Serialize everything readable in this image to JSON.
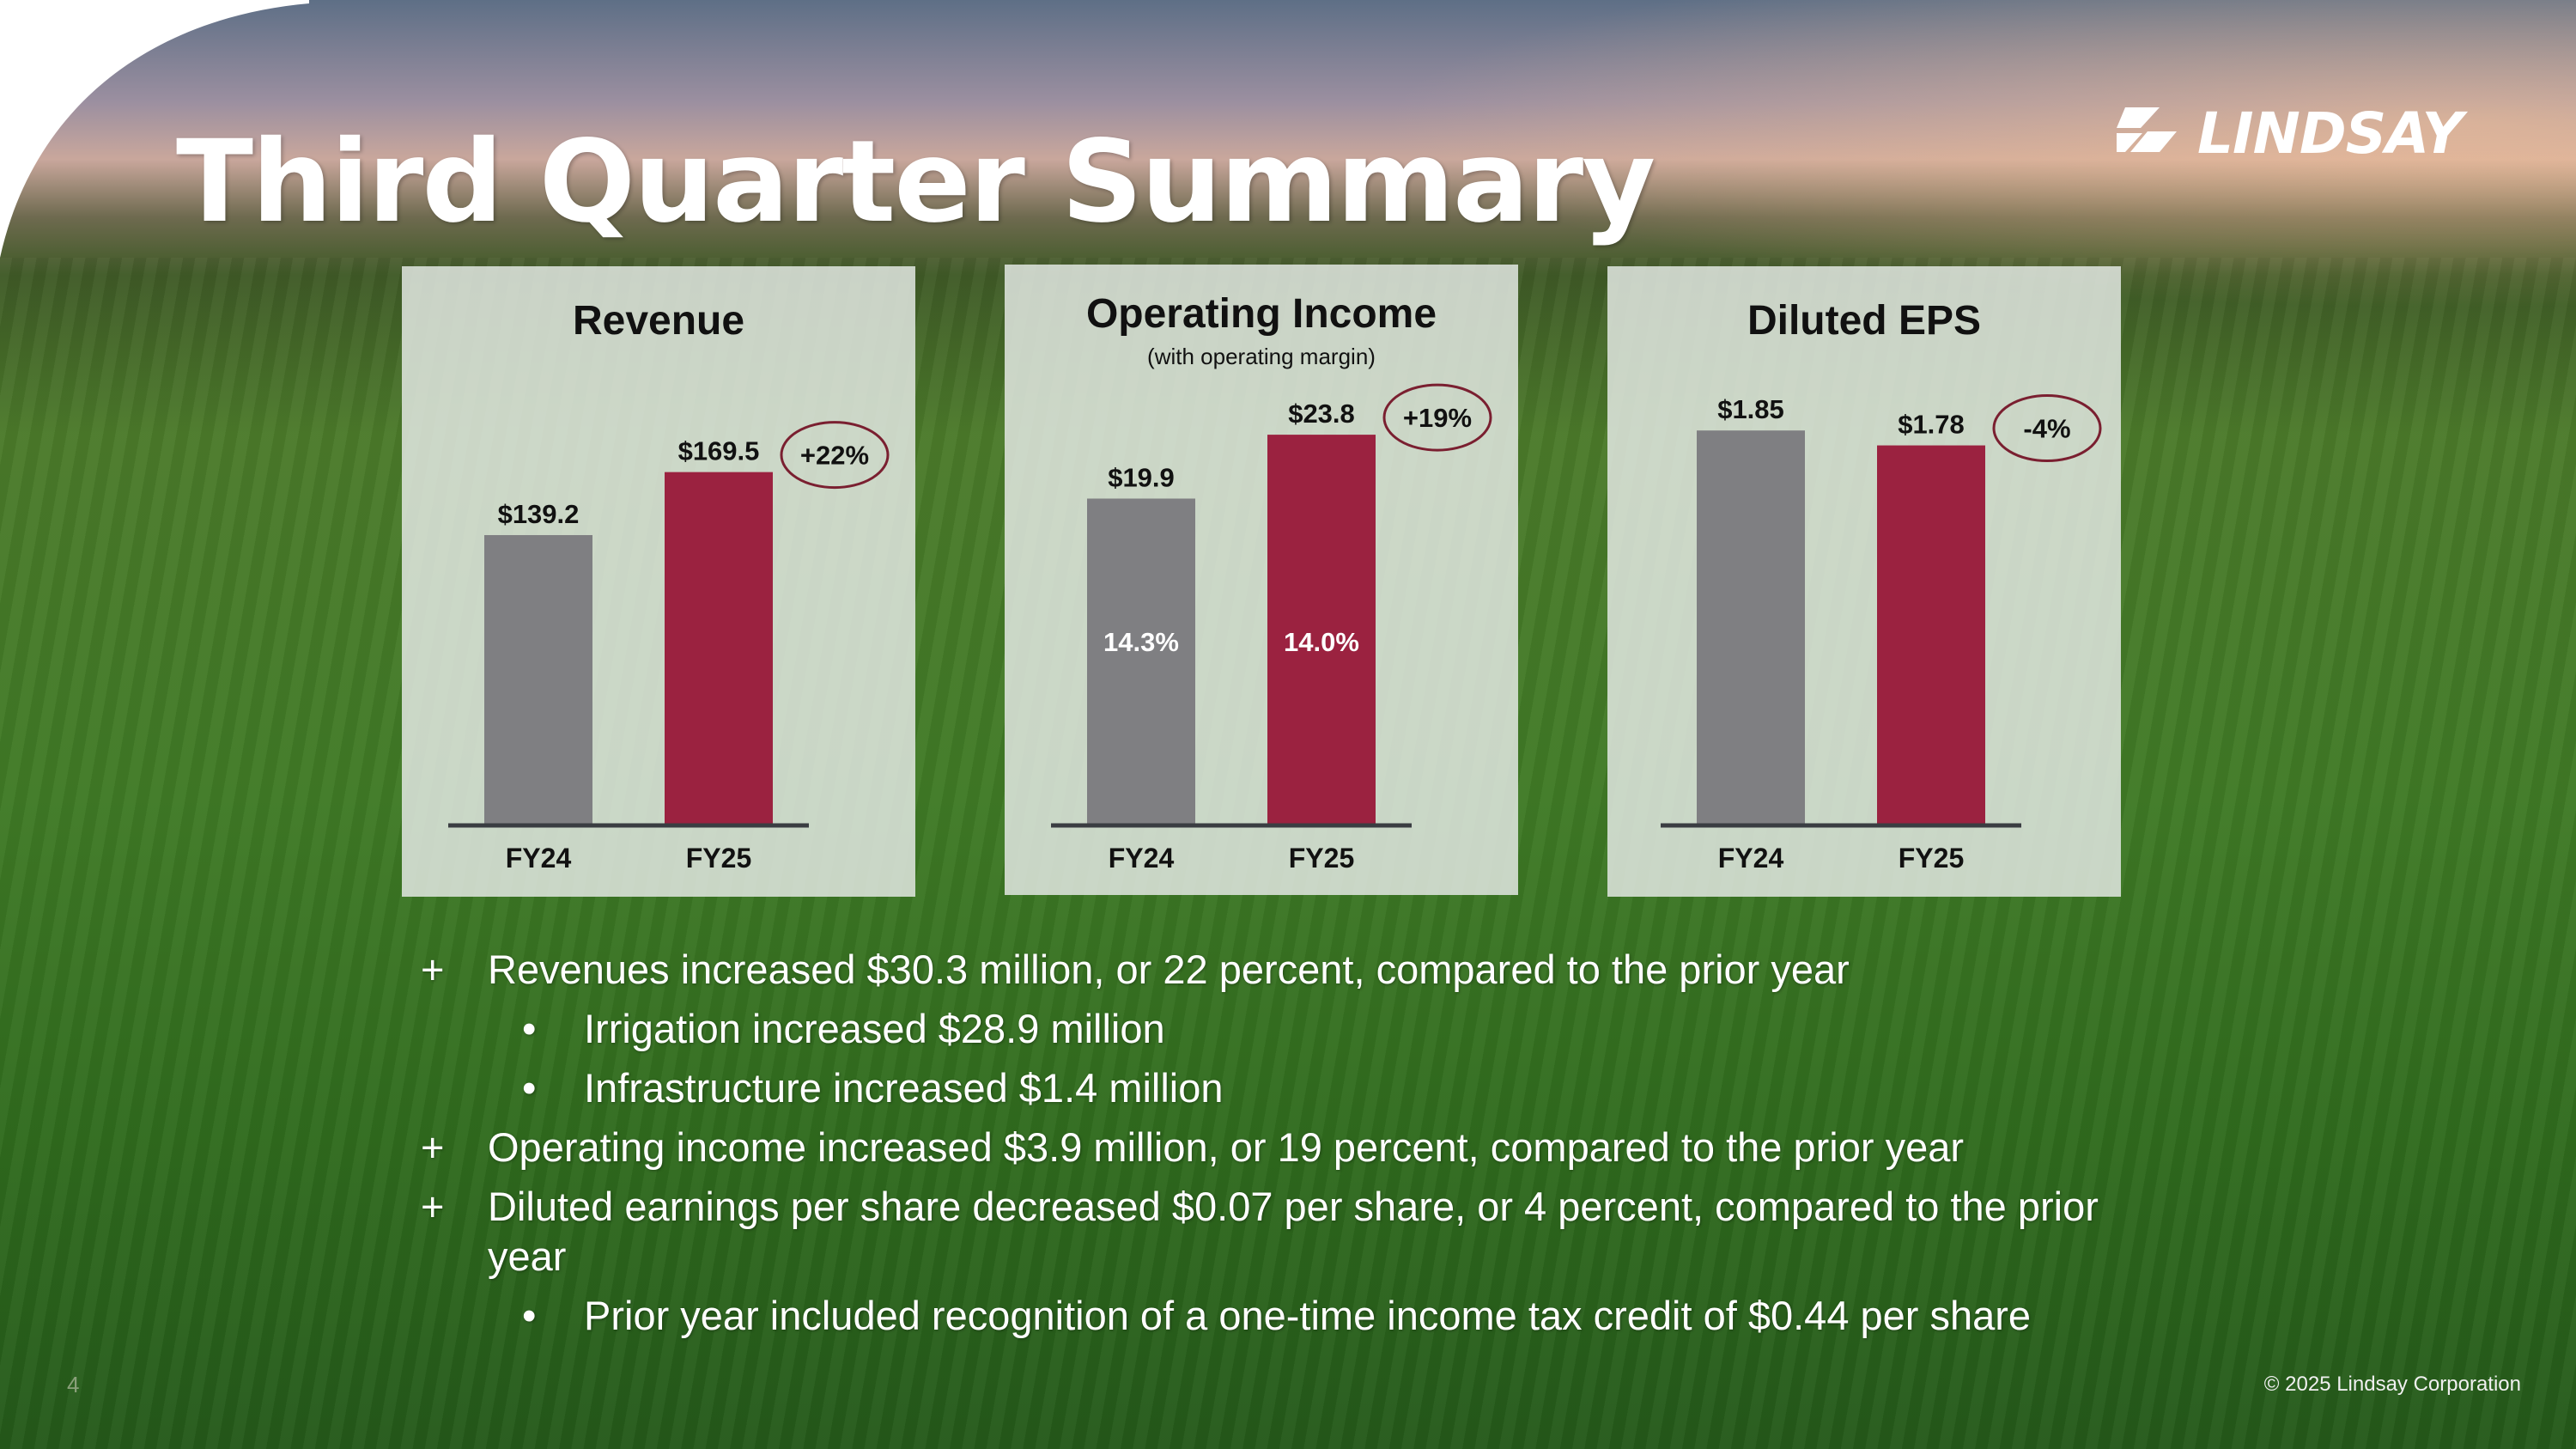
{
  "slide": {
    "title": "Third Quarter Summary",
    "logo_text": "LINDSAY",
    "page_number": "4",
    "copyright": "© 2025 Lindsay Corporation"
  },
  "colors": {
    "fy24_bar": "#7f7f82",
    "fy25_bar": "#9b2240",
    "badge_border": "#7a1f30"
  },
  "chart_data": [
    {
      "type": "bar",
      "title": "Revenue",
      "subtitle": "",
      "categories": [
        "FY24",
        "FY25"
      ],
      "values": [
        139.2,
        169.5
      ],
      "value_labels": [
        "$139.2",
        "$169.5"
      ],
      "inner_labels": [
        "",
        ""
      ],
      "change_label": "+22%",
      "ylim": [
        0,
        190
      ]
    },
    {
      "type": "bar",
      "title": "Operating Income",
      "subtitle": "(with operating margin)",
      "categories": [
        "FY24",
        "FY25"
      ],
      "values": [
        19.9,
        23.8
      ],
      "value_labels": [
        "$19.9",
        "$23.8"
      ],
      "inner_labels": [
        "14.3%",
        "14.0%"
      ],
      "change_label": "+19%",
      "ylim": [
        0,
        28
      ]
    },
    {
      "type": "bar",
      "title": "Diluted EPS",
      "subtitle": "",
      "categories": [
        "FY24",
        "FY25"
      ],
      "values": [
        1.85,
        1.78
      ],
      "value_labels": [
        "$1.85",
        "$1.78"
      ],
      "inner_labels": [
        "",
        ""
      ],
      "change_label": "-4%",
      "ylim": [
        0,
        2.0
      ]
    }
  ],
  "bullets": [
    {
      "level": 1,
      "marker": "+",
      "text": "Revenues increased $30.3 million, or 22 percent, compared to the prior year"
    },
    {
      "level": 2,
      "marker": "•",
      "text": "Irrigation increased $28.9 million"
    },
    {
      "level": 2,
      "marker": "•",
      "text": "Infrastructure increased $1.4 million"
    },
    {
      "level": 1,
      "marker": "+",
      "text": "Operating income increased $3.9 million, or 19 percent, compared to the prior year"
    },
    {
      "level": 1,
      "marker": "+",
      "text": "Diluted earnings per share decreased $0.07 per share, or 4 percent, compared to the prior year"
    },
    {
      "level": 2,
      "marker": "•",
      "text": "Prior year included recognition of a one-time income tax credit of $0.44 per share"
    }
  ]
}
